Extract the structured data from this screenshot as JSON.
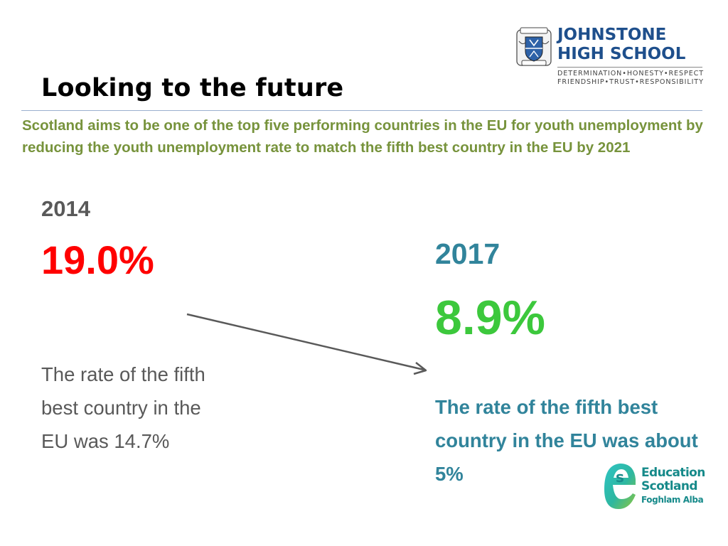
{
  "header": {
    "title": "Looking to the future",
    "subtitle": "Scotland aims to be one of the top five performing countries in the EU for youth unemployment by reducing the youth unemployment rate to match the fifth best country in the EU by 2021"
  },
  "school_logo": {
    "name_line1": "JOHNSTONE",
    "name_line2": "HIGH SCHOOL",
    "motto_line1": "DETERMINATION•HONESTY•RESPECT",
    "motto_line2": "FRIENDSHIP•TRUST•RESPONSIBILITY"
  },
  "left": {
    "year": "2014",
    "rate": "19.0%",
    "note": "The rate of the fifth best country in the EU was 14.7%"
  },
  "right": {
    "year": "2017",
    "rate": "8.9%",
    "note": "The rate of the fifth best country in the EU was about 5%"
  },
  "partner_logo": {
    "line1": "Education",
    "line2": "Scotland",
    "line3": "Foghlam Alba"
  },
  "colors": {
    "subtitle": "#77933c",
    "rate_2014": "#ff0000",
    "rate_2017": "#3cc83c",
    "accent_teal": "#31849b",
    "muted": "#595959"
  }
}
